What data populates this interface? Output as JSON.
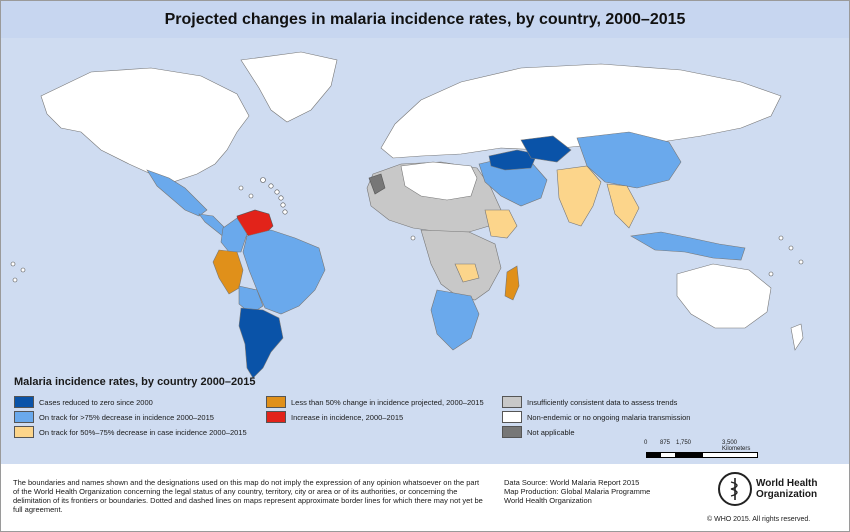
{
  "title": "Projected changes in malaria incidence rates, by country, 2000–2015",
  "colors": {
    "ocean": "#cfdcf1",
    "cases_zero": "#0a53a8",
    "over75": "#6aa9ec",
    "between50_75": "#fcd58b",
    "less50": "#e0901a",
    "increase": "#e2231a",
    "insufficient": "#c8c8c8",
    "non_endemic": "#ffffff",
    "not_applicable": "#777777"
  },
  "legend": {
    "title": "Malaria incidence rates, by country 2000–2015",
    "items": [
      {
        "label": "Cases reduced to zero since 2000",
        "color": "#0a53a8"
      },
      {
        "label": "On track for >75% decrease in incidence 2000–2015",
        "color": "#6aa9ec"
      },
      {
        "label": "On track for 50%–75% decrease in case incidence 2000–2015",
        "color": "#fcd58b"
      },
      {
        "label": "Less than 50% change in incidence projected, 2000–2015",
        "color": "#e0901a"
      },
      {
        "label": "Increase in incidence, 2000–2015",
        "color": "#e2231a"
      },
      {
        "label": "Insufficiently consistent data to assess trends",
        "color": "#c8c8c8"
      },
      {
        "label": "Non-endemic or no ongoing malaria transmission",
        "color": "#ffffff"
      },
      {
        "label": "Not applicable",
        "color": "#777777"
      }
    ]
  },
  "scale": {
    "ticks": [
      "0",
      "875",
      "1,750",
      "3,500 Kilometers"
    ]
  },
  "footer": {
    "disclaimer": "The boundaries and names shown and the designations used on this map do not imply the expression of any opinion whatsoever on the part of the World Health Organization concerning the legal status of any country, territory, city or area or of its authorities, or concerning the delimitation of its frontiers or boundaries. Dotted and dashed lines on maps represent approximate border lines for which there may not yet be full agreement.",
    "source": "Data Source: World Malaria Report 2015",
    "production": "Map Production: Global Malaria Programme",
    "org": "World Health Organization",
    "logo_text": "World Health Organization",
    "copyright": "© WHO 2015. All rights reserved."
  }
}
